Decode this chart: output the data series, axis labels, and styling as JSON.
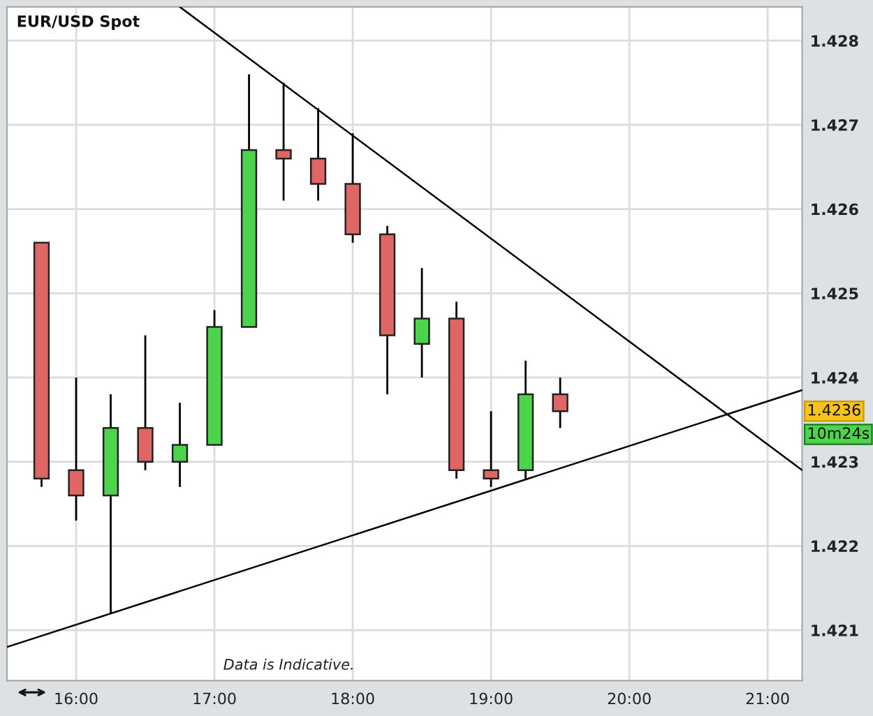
{
  "chart_data": {
    "type": "candlestick",
    "title": "EUR/USD Spot",
    "x": [
      15.75,
      16,
      16.25,
      16.5,
      16.75,
      17,
      17.25,
      17.5,
      17.75,
      18,
      18.25,
      18.5,
      18.75,
      19,
      19.25,
      19.5
    ],
    "ohlc": [
      [
        1.4256,
        1.4256,
        1.4227,
        1.4228
      ],
      [
        1.4229,
        1.424,
        1.4223,
        1.4226
      ],
      [
        1.4226,
        1.4238,
        1.4212,
        1.4234
      ],
      [
        1.4234,
        1.4245,
        1.4229,
        1.423
      ],
      [
        1.423,
        1.4237,
        1.4227,
        1.4232
      ],
      [
        1.4232,
        1.4248,
        1.4232,
        1.4246
      ],
      [
        1.4246,
        1.4276,
        1.4246,
        1.4267
      ],
      [
        1.4267,
        1.4275,
        1.4261,
        1.4266
      ],
      [
        1.4266,
        1.4272,
        1.4261,
        1.4263
      ],
      [
        1.4263,
        1.4269,
        1.4256,
        1.4257
      ],
      [
        1.4257,
        1.4258,
        1.4238,
        1.4245
      ],
      [
        1.4244,
        1.4253,
        1.424,
        1.4247
      ],
      [
        1.4247,
        1.4249,
        1.4228,
        1.4229
      ],
      [
        1.4229,
        1.4236,
        1.4227,
        1.4228
      ],
      [
        1.4229,
        1.4242,
        1.4228,
        1.4238
      ],
      [
        1.4238,
        1.424,
        1.4234,
        1.4236
      ]
    ],
    "colors": [
      "#e06666",
      "#e06666",
      "#4cd44c",
      "#e06666",
      "#4cd44c",
      "#4cd44c",
      "#4cd44c",
      "#e06666",
      "#e06666",
      "#e06666",
      "#e06666",
      "#4cd44c",
      "#e06666",
      "#e06666",
      "#4cd44c",
      "#e06666"
    ],
    "series": [
      {
        "type": "line",
        "color": "#000000",
        "x": [
          16.75,
          21.25
        ],
        "values": [
          1.4284,
          1.4229
        ]
      },
      {
        "type": "line",
        "color": "#000000",
        "x": [
          15.5,
          21.25
        ],
        "values": [
          1.4208,
          1.42385
        ]
      }
    ],
    "xlim": [
      15.5,
      21.25
    ],
    "ylim": [
      1.4204,
      1.4284
    ],
    "xticks": [
      {
        "value": 16,
        "label": "16:00"
      },
      {
        "value": 17,
        "label": "17:00"
      },
      {
        "value": 18,
        "label": "18:00"
      },
      {
        "value": 19,
        "label": "19:00"
      },
      {
        "value": 20,
        "label": "20:00"
      },
      {
        "value": 21,
        "label": "21:00"
      }
    ],
    "yticks": [
      1.421,
      1.422,
      1.423,
      1.424,
      1.425,
      1.426,
      1.427,
      1.428
    ],
    "grid": true,
    "annotations": [
      {
        "text": "1.4236",
        "y": 1.4236
      },
      "10m24s",
      "Data is Indicative."
    ]
  }
}
